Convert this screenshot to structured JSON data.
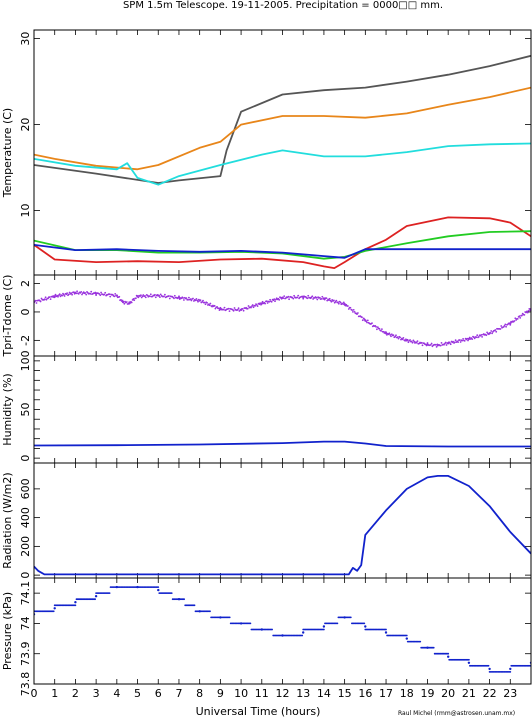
{
  "figure": {
    "title": "SPM 1.5m Telescope. 19-11-2005. Precipitation = 0000□□ mm.",
    "xlabel": "Universal Time (hours)",
    "credit": "Raul Michel (rmm@astrosen.unam.mx)"
  },
  "chart_data": [
    {
      "type": "line",
      "ylabel": "Temperature (C)",
      "xlim": [
        0,
        24
      ],
      "ylim": [
        2.5,
        31
      ],
      "yticks": [
        10,
        20,
        30
      ],
      "grid": false,
      "series": [
        {
          "color": "#555555",
          "x": [
            0,
            3,
            6,
            7,
            9,
            9.3,
            10,
            12,
            14,
            16,
            18,
            20,
            22,
            24
          ],
          "values": [
            15.3,
            14.3,
            13.2,
            13.5,
            14.0,
            17.0,
            21.5,
            23.5,
            24.0,
            24.3,
            25.0,
            25.8,
            26.8,
            28.0
          ]
        },
        {
          "color": "#e8861a",
          "x": [
            0,
            1,
            3,
            5,
            6,
            8,
            9,
            10,
            12,
            14,
            16,
            18,
            20,
            22,
            24
          ],
          "values": [
            16.5,
            16.0,
            15.2,
            14.8,
            15.3,
            17.3,
            18.0,
            20.0,
            21.0,
            21.0,
            20.8,
            21.3,
            22.3,
            23.2,
            24.3
          ]
        },
        {
          "color": "#22dddd",
          "x": [
            0,
            2,
            4,
            4.5,
            5,
            6,
            7,
            9,
            11,
            12,
            14,
            16,
            18,
            20,
            22,
            24
          ],
          "values": [
            16.0,
            15.2,
            14.8,
            15.5,
            13.8,
            13.0,
            14.0,
            15.3,
            16.5,
            17.0,
            16.3,
            16.3,
            16.8,
            17.5,
            17.7,
            17.8
          ]
        },
        {
          "color": "#dd2222",
          "x": [
            0,
            1,
            3,
            5,
            7,
            9,
            11,
            13,
            14,
            14.5,
            15,
            16,
            17,
            18,
            20,
            22,
            23,
            24
          ],
          "values": [
            6.0,
            4.3,
            4.0,
            4.1,
            4.0,
            4.3,
            4.4,
            4.0,
            3.5,
            3.3,
            4.0,
            5.5,
            6.6,
            8.2,
            9.2,
            9.1,
            8.6,
            7.0
          ]
        },
        {
          "color": "#22cc22",
          "x": [
            0,
            2,
            4,
            6,
            8,
            10,
            12,
            14,
            15,
            16,
            18,
            20,
            22,
            24
          ],
          "values": [
            6.5,
            5.4,
            5.4,
            5.1,
            5.1,
            5.2,
            5.0,
            4.4,
            4.6,
            5.3,
            6.2,
            7.0,
            7.5,
            7.6
          ]
        },
        {
          "color": "#1122cc",
          "x": [
            0,
            2,
            4,
            6,
            8,
            10,
            12,
            14,
            15,
            16,
            18,
            20,
            22,
            24
          ],
          "values": [
            6.0,
            5.4,
            5.5,
            5.3,
            5.2,
            5.3,
            5.1,
            4.7,
            4.5,
            5.5,
            5.5,
            5.5,
            5.5,
            5.5
          ]
        }
      ]
    },
    {
      "type": "scatter",
      "ylabel": "Tpri-Tdome (C)",
      "xlim": [
        0,
        24
      ],
      "ylim": [
        -3.1,
        2.6
      ],
      "yticks": [
        -2,
        0,
        2
      ],
      "grid": false,
      "series": [
        {
          "color": "#9933dd",
          "x": [
            0,
            1,
            2,
            3,
            4,
            4.3,
            4.6,
            5,
            6,
            7,
            8,
            9,
            10,
            11,
            12,
            13,
            14,
            15,
            16,
            17,
            18,
            19,
            19.5,
            20,
            21,
            22,
            23,
            24
          ],
          "values": [
            0.7,
            1.1,
            1.35,
            1.3,
            1.15,
            0.7,
            0.6,
            1.1,
            1.15,
            1.0,
            0.8,
            0.2,
            0.15,
            0.6,
            1.0,
            1.05,
            0.95,
            0.55,
            -0.6,
            -1.5,
            -2.0,
            -2.3,
            -2.35,
            -2.2,
            -1.9,
            -1.5,
            -0.8,
            0.2
          ]
        }
      ]
    },
    {
      "type": "line",
      "ylabel": "Humidity (%)",
      "xlim": [
        0,
        24
      ],
      "ylim": [
        -5,
        105
      ],
      "yticks": [
        0,
        10,
        20,
        30,
        40,
        50,
        60,
        70,
        80,
        90,
        100
      ],
      "ytick_labels": [
        "0",
        "",
        "",
        "",
        "",
        "50",
        "",
        "",
        "",
        "",
        "100"
      ],
      "grid": false,
      "series": [
        {
          "color": "#1122cc",
          "x": [
            0,
            4,
            8,
            12,
            14,
            15,
            16,
            17,
            20,
            24
          ],
          "values": [
            13,
            13.3,
            14,
            15.5,
            17,
            17,
            15,
            12.5,
            12,
            12
          ]
        }
      ]
    },
    {
      "type": "line",
      "ylabel": "Radiation (W/m2)",
      "xlim": [
        0,
        24
      ],
      "ylim": [
        -20,
        780
      ],
      "yticks": [
        0,
        200,
        400,
        600
      ],
      "grid": false,
      "series": [
        {
          "color": "#1122cc",
          "x": [
            0,
            0.2,
            0.5,
            15.2,
            15.4,
            15.6,
            15.8,
            16,
            17,
            18,
            19,
            19.5,
            20,
            21,
            22,
            23,
            24
          ],
          "values": [
            60,
            30,
            5,
            5,
            50,
            30,
            70,
            280,
            450,
            600,
            680,
            690,
            690,
            620,
            480,
            300,
            150
          ]
        }
      ]
    },
    {
      "type": "scatter",
      "ylabel": "Pressure (kPa)",
      "xlim": [
        0,
        24
      ],
      "ylim": [
        73.8,
        74.15
      ],
      "yticks": [
        73.8,
        73.9,
        74,
        74.1
      ],
      "grid": false,
      "series": [
        {
          "color": "#1122cc",
          "x": [
            0,
            1,
            2,
            3,
            4,
            5,
            6,
            7,
            8,
            9,
            10,
            11,
            12,
            13,
            14,
            15,
            16,
            17,
            18,
            19,
            20,
            21,
            22,
            23,
            24
          ],
          "values": [
            74.03,
            74.05,
            74.07,
            74.09,
            74.12,
            74.12,
            74.11,
            74.08,
            74.04,
            74.02,
            74.0,
            73.98,
            73.96,
            73.97,
            73.99,
            74.02,
            73.99,
            73.97,
            73.95,
            73.92,
            73.89,
            73.87,
            73.85,
            73.85,
            73.87
          ]
        }
      ]
    }
  ]
}
